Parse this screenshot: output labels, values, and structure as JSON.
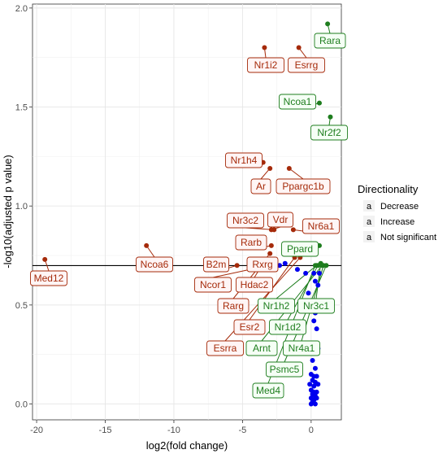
{
  "chart_data": {
    "type": "scatter",
    "title": "",
    "xlabel": "log2(fold change)",
    "ylabel": "-log10(adjusted p value)",
    "xlim": [
      -20.3,
      2.2
    ],
    "ylim": [
      -0.08,
      2.02
    ],
    "xticks": [
      -20,
      -15,
      -10,
      -5,
      0
    ],
    "yticks": [
      0.0,
      0.5,
      1.0,
      1.5,
      2.0
    ],
    "xtick_labels": [
      "-20",
      "-15",
      "-10",
      "-5",
      "0"
    ],
    "ytick_labels": [
      "0.0",
      "0.5",
      "1.0",
      "1.5",
      "2.0"
    ],
    "threshold_y": 0.699,
    "grid": true,
    "legend": {
      "title": "Directionality",
      "position": "right",
      "entries": [
        {
          "name": "Decrease",
          "color": "#a52a0a"
        },
        {
          "name": "Increase",
          "color": "#1e7d1e"
        },
        {
          "name": "Not significant",
          "color": "#0000ee"
        }
      ]
    },
    "colors": {
      "Decrease": "#a52a0a",
      "Increase": "#1e7d1e",
      "Not significant": "#0000ee"
    },
    "series": [
      {
        "name": "Decrease",
        "points": [
          {
            "x": -19.4,
            "y": 0.73,
            "label": "Med12"
          },
          {
            "x": -12.0,
            "y": 0.8,
            "label": "Ncoa6"
          },
          {
            "x": -3.4,
            "y": 1.8,
            "label": "Nr1i2"
          },
          {
            "x": -0.9,
            "y": 1.8,
            "label": "Esrrg"
          },
          {
            "x": -3.5,
            "y": 1.22,
            "label": "Nr1h4"
          },
          {
            "x": -3.0,
            "y": 1.19,
            "label": "Ar"
          },
          {
            "x": -1.6,
            "y": 1.19,
            "label": "Ppargc1b"
          },
          {
            "x": -2.9,
            "y": 0.88,
            "label": "Vdr"
          },
          {
            "x": -2.7,
            "y": 0.88,
            "label": "Nr3c2"
          },
          {
            "x": -1.3,
            "y": 0.88,
            "label": "Nr6a1"
          },
          {
            "x": -2.9,
            "y": 0.8,
            "label": "Rarb"
          },
          {
            "x": -5.4,
            "y": 0.7,
            "label": "B2m"
          },
          {
            "x": -2.9,
            "y": 0.71,
            "label": "Rxrg"
          },
          {
            "x": -3.1,
            "y": 0.7,
            "label": "Ncor1"
          },
          {
            "x": -3.6,
            "y": 0.7,
            "label": "Hdac2"
          },
          {
            "x": -3.0,
            "y": 0.76,
            "label": "Rarg"
          },
          {
            "x": -1.2,
            "y": 0.74,
            "label": "Esr2"
          },
          {
            "x": -0.8,
            "y": 0.74,
            "label": "Esrra"
          }
        ]
      },
      {
        "name": "Increase",
        "points": [
          {
            "x": 1.2,
            "y": 1.92,
            "label": "Rara"
          },
          {
            "x": 0.6,
            "y": 1.52,
            "label": "Ncoa1"
          },
          {
            "x": 1.4,
            "y": 1.45,
            "label": "Nr2f2"
          },
          {
            "x": 0.6,
            "y": 0.8,
            "label": "Ppard"
          },
          {
            "x": 0.4,
            "y": 0.7,
            "label": "Nr1h2"
          },
          {
            "x": 0.7,
            "y": 0.71,
            "label": "Nr3c1"
          },
          {
            "x": 0.5,
            "y": 0.7,
            "label": "Nr1d2"
          },
          {
            "x": 0.8,
            "y": 0.7,
            "label": "Arnt"
          },
          {
            "x": 0.9,
            "y": 0.7,
            "label": "Nr4a1"
          },
          {
            "x": 1.1,
            "y": 0.7,
            "label": "Psmc5"
          },
          {
            "x": 0.3,
            "y": 0.7,
            "label": "Med4"
          }
        ]
      },
      {
        "name": "Not significant",
        "points": [
          {
            "x": -2.7,
            "y": 0.7
          },
          {
            "x": -2.3,
            "y": 0.7
          },
          {
            "x": -1.9,
            "y": 0.71
          },
          {
            "x": -1.0,
            "y": 0.68
          },
          {
            "x": -0.4,
            "y": 0.66
          },
          {
            "x": -0.2,
            "y": 0.56
          },
          {
            "x": 0.2,
            "y": 0.66
          },
          {
            "x": 0.3,
            "y": 0.62
          },
          {
            "x": 0.5,
            "y": 0.6
          },
          {
            "x": 0.6,
            "y": 0.66
          },
          {
            "x": 0.1,
            "y": 0.48
          },
          {
            "x": 0.3,
            "y": 0.46
          },
          {
            "x": 0.2,
            "y": 0.42
          },
          {
            "x": 0.4,
            "y": 0.38
          },
          {
            "x": 0.0,
            "y": 0.28
          },
          {
            "x": 0.3,
            "y": 0.27
          },
          {
            "x": 0.5,
            "y": 0.28
          },
          {
            "x": 0.1,
            "y": 0.22
          },
          {
            "x": 0.3,
            "y": 0.18
          },
          {
            "x": 0.0,
            "y": 0.15
          },
          {
            "x": 0.2,
            "y": 0.14
          },
          {
            "x": 0.4,
            "y": 0.14
          },
          {
            "x": 0.1,
            "y": 0.12
          },
          {
            "x": 0.3,
            "y": 0.11
          },
          {
            "x": -0.1,
            "y": 0.1
          },
          {
            "x": 0.2,
            "y": 0.09
          },
          {
            "x": 0.5,
            "y": 0.1
          },
          {
            "x": 0.0,
            "y": 0.07
          },
          {
            "x": 0.2,
            "y": 0.06
          },
          {
            "x": 0.4,
            "y": 0.06
          },
          {
            "x": 0.1,
            "y": 0.05
          },
          {
            "x": 0.3,
            "y": 0.04
          },
          {
            "x": 0.0,
            "y": 0.03
          },
          {
            "x": 0.2,
            "y": 0.02
          },
          {
            "x": 0.4,
            "y": 0.03
          },
          {
            "x": 0.1,
            "y": 0.01
          },
          {
            "x": 0.3,
            "y": 0.0
          },
          {
            "x": 0.0,
            "y": 0.0
          }
        ]
      }
    ]
  }
}
